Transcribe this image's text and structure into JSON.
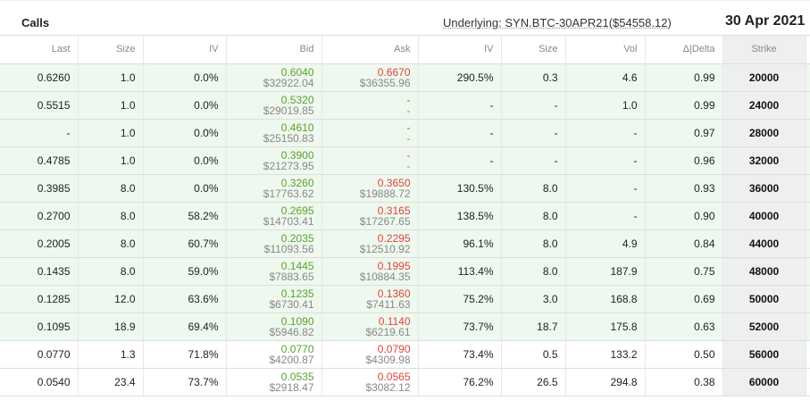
{
  "header": {
    "title": "Calls",
    "underlying": "Underlying: SYN.BTC-30APR21($54558.12)",
    "date": "30 Apr 2021"
  },
  "columns": [
    "Last",
    "Size",
    "IV",
    "Bid",
    "Ask",
    "IV",
    "Size",
    "Vol",
    "Δ|Delta",
    "Strike"
  ],
  "rows": [
    {
      "last": "0.6260",
      "size": "1.0",
      "iv": "0.0%",
      "bid": "0.6040",
      "bid_usd": "$32922.04",
      "ask": "0.6670",
      "ask_usd": "$36355.96",
      "iv2": "290.5%",
      "size2": "0.3",
      "vol": "4.6",
      "delta": "0.99",
      "strike": "20000",
      "itm": true
    },
    {
      "last": "0.5515",
      "size": "1.0",
      "iv": "0.0%",
      "bid": "0.5320",
      "bid_usd": "$29019.85",
      "ask": "-",
      "ask_usd": "-",
      "iv2": "-",
      "size2": "-",
      "vol": "1.0",
      "delta": "0.99",
      "strike": "24000",
      "itm": true
    },
    {
      "last": "-",
      "size": "1.0",
      "iv": "0.0%",
      "bid": "0.4610",
      "bid_usd": "$25150.83",
      "ask": "-",
      "ask_usd": "-",
      "iv2": "-",
      "size2": "-",
      "vol": "-",
      "delta": "0.97",
      "strike": "28000",
      "itm": true
    },
    {
      "last": "0.4785",
      "size": "1.0",
      "iv": "0.0%",
      "bid": "0.3900",
      "bid_usd": "$21273.95",
      "ask": "-",
      "ask_usd": "-",
      "iv2": "-",
      "size2": "-",
      "vol": "-",
      "delta": "0.96",
      "strike": "32000",
      "itm": true
    },
    {
      "last": "0.3985",
      "size": "8.0",
      "iv": "0.0%",
      "bid": "0.3260",
      "bid_usd": "$17763.62",
      "ask": "0.3650",
      "ask_usd": "$19888.72",
      "iv2": "130.5%",
      "size2": "8.0",
      "vol": "-",
      "delta": "0.93",
      "strike": "36000",
      "itm": true
    },
    {
      "last": "0.2700",
      "size": "8.0",
      "iv": "58.2%",
      "bid": "0.2695",
      "bid_usd": "$14703.41",
      "ask": "0.3165",
      "ask_usd": "$17267.65",
      "iv2": "138.5%",
      "size2": "8.0",
      "vol": "-",
      "delta": "0.90",
      "strike": "40000",
      "itm": true
    },
    {
      "last": "0.2005",
      "size": "8.0",
      "iv": "60.7%",
      "bid": "0.2035",
      "bid_usd": "$11093.56",
      "ask": "0.2295",
      "ask_usd": "$12510.92",
      "iv2": "96.1%",
      "size2": "8.0",
      "vol": "4.9",
      "delta": "0.84",
      "strike": "44000",
      "itm": true
    },
    {
      "last": "0.1435",
      "size": "8.0",
      "iv": "59.0%",
      "bid": "0.1445",
      "bid_usd": "$7883.65",
      "ask": "0.1995",
      "ask_usd": "$10884.35",
      "iv2": "113.4%",
      "size2": "8.0",
      "vol": "187.9",
      "delta": "0.75",
      "strike": "48000",
      "itm": true
    },
    {
      "last": "0.1285",
      "size": "12.0",
      "iv": "63.6%",
      "bid": "0.1235",
      "bid_usd": "$6730.41",
      "ask": "0.1360",
      "ask_usd": "$7411.63",
      "iv2": "75.2%",
      "size2": "3.0",
      "vol": "168.8",
      "delta": "0.69",
      "strike": "50000",
      "itm": true
    },
    {
      "last": "0.1095",
      "size": "18.9",
      "iv": "69.4%",
      "bid": "0.1090",
      "bid_usd": "$5946.82",
      "ask": "0.1140",
      "ask_usd": "$6219.61",
      "iv2": "73.7%",
      "size2": "18.7",
      "vol": "175.8",
      "delta": "0.63",
      "strike": "52000",
      "itm": true
    },
    {
      "last": "0.0770",
      "size": "1.3",
      "iv": "71.8%",
      "bid": "0.0770",
      "bid_usd": "$4200.87",
      "ask": "0.0790",
      "ask_usd": "$4309.98",
      "iv2": "73.4%",
      "size2": "0.5",
      "vol": "133.2",
      "delta": "0.50",
      "strike": "56000",
      "itm": false
    },
    {
      "last": "0.0540",
      "size": "23.4",
      "iv": "73.7%",
      "bid": "0.0535",
      "bid_usd": "$2918.47",
      "ask": "0.0565",
      "ask_usd": "$3082.12",
      "iv2": "76.2%",
      "size2": "26.5",
      "vol": "294.8",
      "delta": "0.38",
      "strike": "60000",
      "itm": false
    }
  ]
}
